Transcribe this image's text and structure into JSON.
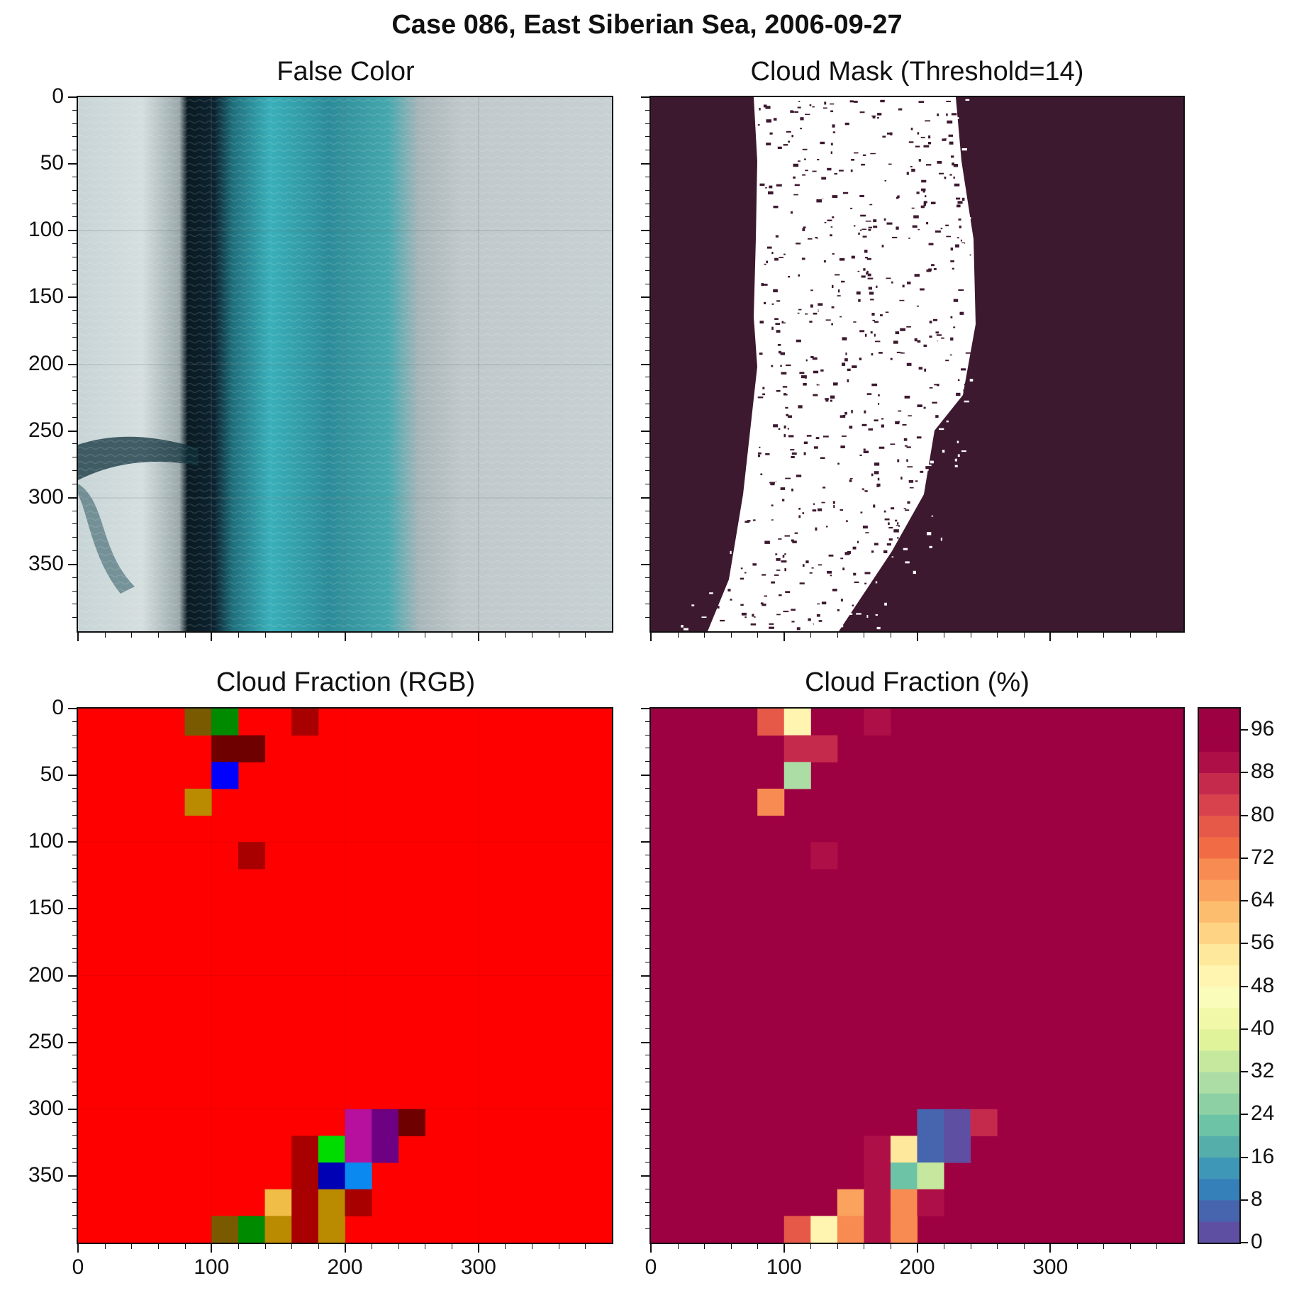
{
  "colors": {
    "mask_background": "#3d1930",
    "mask_cloud": "#ffffff",
    "rgb_base": "#ff0000",
    "fraction_base": "#9e0142"
  },
  "chart_data": {
    "suptitle": "Case 086, East Siberian Sea, 2006-09-27",
    "panels": [
      {
        "id": "false_color",
        "type": "image",
        "title": "False Color",
        "xlim": [
          0,
          400
        ],
        "ylim": [
          400,
          0
        ],
        "x_ticks": [
          0,
          100,
          200,
          300
        ],
        "y_ticks": [
          0,
          50,
          100,
          150,
          200,
          250,
          300,
          350
        ],
        "x_tick_labels_shown": false,
        "y_tick_labels_shown": true,
        "grid": true,
        "scene": [
          {
            "feature": "thin cloud / fog",
            "x_range": [
              0,
              80
            ],
            "color": "#c9d5d6"
          },
          {
            "feature": "open water channel",
            "x_range": [
              80,
              105
            ],
            "color": "#0b1d26"
          },
          {
            "feature": "sea ice (cyan)",
            "x_range": [
              105,
              250
            ],
            "color": "#39a3ac"
          },
          {
            "feature": "cloud field",
            "x_range": [
              250,
              400
            ],
            "color": "#c4cdcf"
          }
        ]
      },
      {
        "id": "cloud_mask",
        "type": "image",
        "title": "Cloud Mask (Threshold=14)",
        "xlim": [
          0,
          400
        ],
        "ylim": [
          400,
          0
        ],
        "x_ticks": [
          0,
          100,
          200,
          300
        ],
        "y_ticks": [
          0,
          50,
          100,
          150,
          200,
          250,
          300,
          350
        ],
        "x_tick_labels_shown": false,
        "y_tick_labels_shown": false,
        "grid": false,
        "classes": [
          "cloud-free (white)",
          "cloud (dark)"
        ]
      },
      {
        "id": "cloud_fraction_rgb",
        "type": "heatmap",
        "title": "Cloud Fraction (RGB)",
        "xlim": [
          0,
          400
        ],
        "ylim": [
          400,
          0
        ],
        "x_ticks": [
          0,
          100,
          200,
          300
        ],
        "y_ticks": [
          0,
          50,
          100,
          150,
          200,
          250,
          300,
          350
        ],
        "x_tick_labels_shown": true,
        "y_tick_labels_shown": true,
        "grid": true,
        "block_size": 20,
        "background": "#ff0000",
        "cells": [
          {
            "col": 4,
            "row": 0,
            "color": "#7a5a00"
          },
          {
            "col": 5,
            "row": 0,
            "color": "#008a00"
          },
          {
            "col": 8,
            "row": 0,
            "color": "#a80000"
          },
          {
            "col": 5,
            "row": 1,
            "color": "#6e0000"
          },
          {
            "col": 6,
            "row": 1,
            "color": "#6e0000"
          },
          {
            "col": 5,
            "row": 2,
            "color": "#0000ff"
          },
          {
            "col": 4,
            "row": 3,
            "color": "#ba8a00"
          },
          {
            "col": 6,
            "row": 5,
            "color": "#a80000"
          },
          {
            "col": 10,
            "row": 15,
            "color": "#b8109e"
          },
          {
            "col": 11,
            "row": 15,
            "color": "#6e0082"
          },
          {
            "col": 12,
            "row": 15,
            "color": "#6e0000"
          },
          {
            "col": 8,
            "row": 16,
            "color": "#a80000"
          },
          {
            "col": 9,
            "row": 16,
            "color": "#00dc00"
          },
          {
            "col": 10,
            "row": 16,
            "color": "#b8109e"
          },
          {
            "col": 11,
            "row": 16,
            "color": "#6e0082"
          },
          {
            "col": 8,
            "row": 17,
            "color": "#a80000"
          },
          {
            "col": 9,
            "row": 17,
            "color": "#0000b4"
          },
          {
            "col": 10,
            "row": 17,
            "color": "#0a8af0"
          },
          {
            "col": 7,
            "row": 18,
            "color": "#f0be46"
          },
          {
            "col": 8,
            "row": 18,
            "color": "#a80000"
          },
          {
            "col": 9,
            "row": 18,
            "color": "#ba8a00"
          },
          {
            "col": 10,
            "row": 18,
            "color": "#a80000"
          },
          {
            "col": 5,
            "row": 19,
            "color": "#7a5a00"
          },
          {
            "col": 6,
            "row": 19,
            "color": "#008a00"
          },
          {
            "col": 7,
            "row": 19,
            "color": "#ba8a00"
          },
          {
            "col": 8,
            "row": 19,
            "color": "#a80000"
          },
          {
            "col": 9,
            "row": 19,
            "color": "#ba8a00"
          }
        ]
      },
      {
        "id": "cloud_fraction_pct",
        "type": "heatmap",
        "title": "Cloud Fraction (%)",
        "xlim": [
          0,
          400
        ],
        "ylim": [
          400,
          0
        ],
        "x_ticks": [
          0,
          100,
          200,
          300
        ],
        "y_ticks": [
          0,
          50,
          100,
          150,
          200,
          250,
          300,
          350
        ],
        "x_tick_labels_shown": true,
        "y_tick_labels_shown": false,
        "grid": false,
        "block_size": 20,
        "background_value": 100,
        "cells": [
          {
            "col": 4,
            "row": 0,
            "value": 78
          },
          {
            "col": 5,
            "row": 0,
            "value": 48
          },
          {
            "col": 8,
            "row": 0,
            "value": 90
          },
          {
            "col": 5,
            "row": 1,
            "value": 86
          },
          {
            "col": 6,
            "row": 1,
            "value": 86
          },
          {
            "col": 5,
            "row": 2,
            "value": 30
          },
          {
            "col": 4,
            "row": 3,
            "value": 70
          },
          {
            "col": 6,
            "row": 5,
            "value": 90
          },
          {
            "col": 10,
            "row": 15,
            "value": 6
          },
          {
            "col": 11,
            "row": 15,
            "value": 2
          },
          {
            "col": 12,
            "row": 15,
            "value": 86
          },
          {
            "col": 8,
            "row": 16,
            "value": 90
          },
          {
            "col": 9,
            "row": 16,
            "value": 52
          },
          {
            "col": 10,
            "row": 16,
            "value": 6
          },
          {
            "col": 11,
            "row": 16,
            "value": 2
          },
          {
            "col": 8,
            "row": 17,
            "value": 90
          },
          {
            "col": 9,
            "row": 17,
            "value": 20
          },
          {
            "col": 10,
            "row": 17,
            "value": 34
          },
          {
            "col": 7,
            "row": 18,
            "value": 66
          },
          {
            "col": 8,
            "row": 18,
            "value": 90
          },
          {
            "col": 9,
            "row": 18,
            "value": 70
          },
          {
            "col": 10,
            "row": 18,
            "value": 90
          },
          {
            "col": 5,
            "row": 19,
            "value": 78
          },
          {
            "col": 6,
            "row": 19,
            "value": 48
          },
          {
            "col": 7,
            "row": 19,
            "value": 70
          },
          {
            "col": 8,
            "row": 19,
            "value": 90
          },
          {
            "col": 9,
            "row": 19,
            "value": 70
          }
        ]
      }
    ],
    "colorbar": {
      "vmin": 0,
      "vmax": 100,
      "step": 4,
      "ticks": [
        0,
        8,
        16,
        24,
        32,
        40,
        48,
        56,
        64,
        72,
        80,
        88,
        96
      ],
      "colors": [
        "#5e4fa2",
        "#4765ae",
        "#3680b9",
        "#3f97b7",
        "#55aeaa",
        "#6cc3a5",
        "#8dd0a4",
        "#abdda4",
        "#c6e89e",
        "#e0f29a",
        "#f1f9a9",
        "#fafdba",
        "#fff5b0",
        "#fee89b",
        "#fed384",
        "#fdbd6e",
        "#fba35e",
        "#f88b51",
        "#f16c45",
        "#e65949",
        "#d8424c",
        "#c52a4d",
        "#ae0f47",
        "#9e0142",
        "#9e0142"
      ]
    }
  }
}
